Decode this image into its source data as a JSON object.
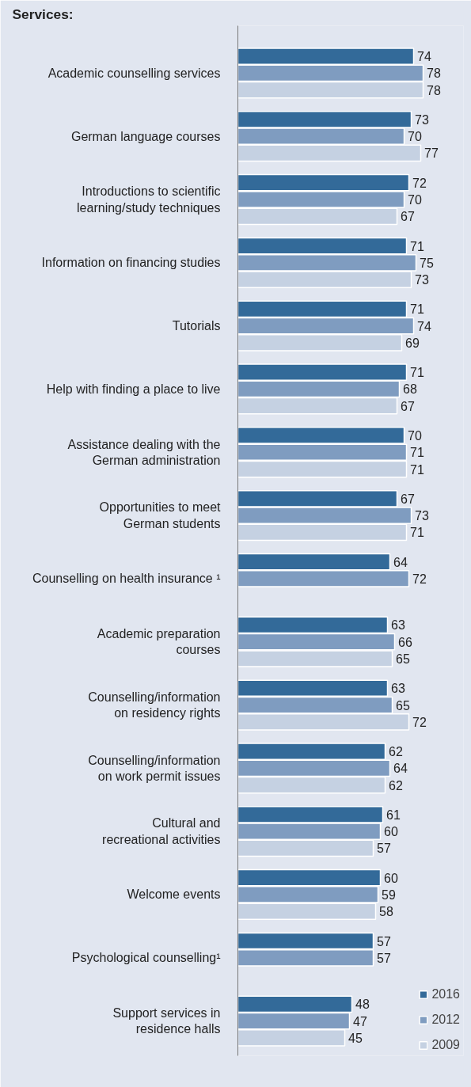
{
  "chart_data": {
    "type": "bar",
    "orientation": "horizontal",
    "title": "Services:",
    "categories": [
      "Academic counselling services",
      "German language courses",
      "Introductions to scientific\nlearning/study techniques",
      "Information on financing studies",
      "Tutorials",
      "Help with finding a place to live",
      "Assistance dealing with the\nGerman administration",
      "Opportunities to meet\nGerman students",
      "Counselling on health insurance ¹",
      "Academic preparation\ncourses",
      "Counselling/information\non residency rights",
      "Counselling/information\non work permit issues",
      "Cultural and\nrecreational activities",
      "Welcome events",
      "Psychological counselling¹",
      "Support services in\nresidence halls"
    ],
    "series": [
      {
        "name": "2016",
        "color": "#336a99",
        "values": [
          74,
          73,
          72,
          71,
          71,
          71,
          70,
          67,
          64,
          63,
          63,
          62,
          61,
          60,
          57,
          48
        ]
      },
      {
        "name": "2012",
        "color": "#7f9cc0",
        "values": [
          78,
          70,
          70,
          75,
          74,
          68,
          71,
          73,
          72,
          66,
          65,
          64,
          60,
          59,
          57,
          47
        ]
      },
      {
        "name": "2009",
        "color": "#c5d1e2",
        "values": [
          78,
          77,
          67,
          73,
          69,
          67,
          71,
          71,
          null,
          65,
          72,
          62,
          57,
          58,
          null,
          45
        ]
      }
    ],
    "xlim": [
      0,
      95
    ],
    "tick_labels": "y",
    "grid": false,
    "data_labels": true,
    "legend": "bottom right"
  }
}
